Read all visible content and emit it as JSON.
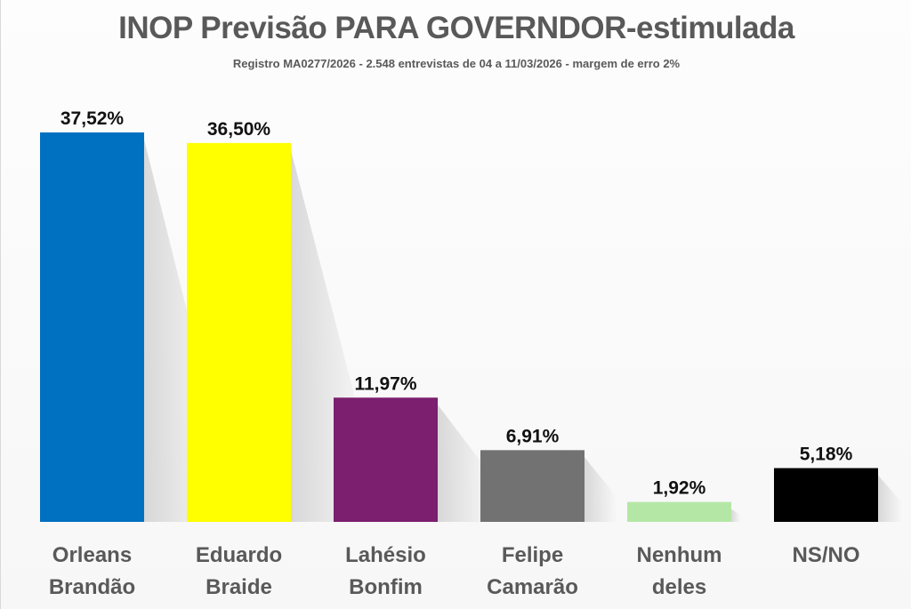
{
  "chart_data": {
    "type": "bar",
    "title": "INOP Previsão PARA GOVERNDOR-estimulada",
    "subtitle": "Registro MA0277/2026 - 2.548 entrevistas de 04 a 11/03/2026 - margem de erro 2%",
    "categories": [
      [
        "Orleans",
        "Brandão"
      ],
      [
        "Eduardo",
        "Braide"
      ],
      [
        "Lahésio",
        "Bonfim"
      ],
      [
        "Felipe",
        "Camarão"
      ],
      [
        "Nenhum",
        "deles"
      ],
      [
        "NS/NO"
      ]
    ],
    "values": [
      37.52,
      36.5,
      11.97,
      6.91,
      1.92,
      5.18
    ],
    "value_labels": [
      "37,52%",
      "36,50%",
      "11,97%",
      "6,91%",
      "1,92%",
      "5,18%"
    ],
    "colors": [
      "#0070c0",
      "#ffff00",
      "#7b1f6e",
      "#727272",
      "#b4e7a6",
      "#000000"
    ],
    "ylim": [
      0,
      40
    ],
    "grid": false,
    "legend": "none"
  }
}
